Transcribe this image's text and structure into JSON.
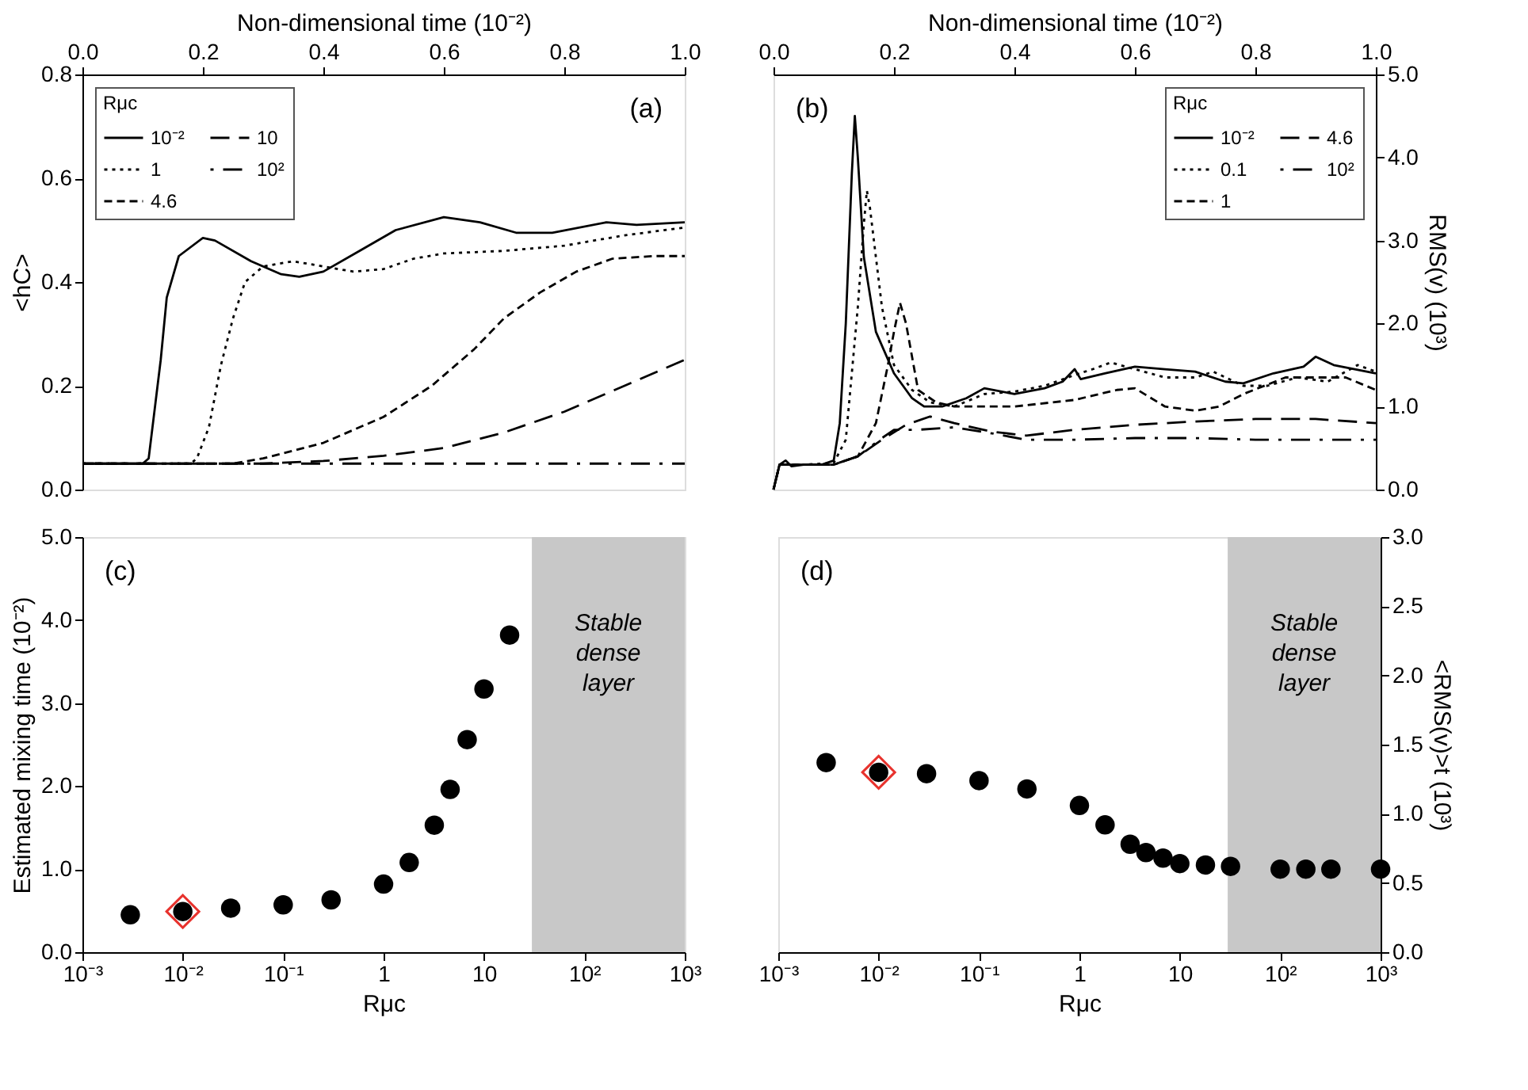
{
  "chart_data": [
    {
      "type": "line",
      "xlabel": "Non-dimensional time (10⁻²)",
      "ylabel": "<hC>",
      "legend_title": "Rμc",
      "legend": "top left",
      "xlim": [
        0,
        1
      ],
      "xticks": [
        {
          "value": 0,
          "label": "0.0"
        },
        {
          "value": 0.2,
          "label": "0.2"
        },
        {
          "value": 0.4,
          "label": "0.4"
        },
        {
          "value": 0.6,
          "label": "0.6"
        },
        {
          "value": 0.8,
          "label": "0.8"
        },
        {
          "value": 1,
          "label": "1.0"
        }
      ],
      "ylim": [
        0,
        0.8
      ],
      "yticks": [
        {
          "value": 0,
          "label": "0.0"
        },
        0.2,
        0.4,
        0.6,
        0.8
      ],
      "annotations": [
        "(a)"
      ],
      "series": [
        {
          "name": "10⁻²",
          "color": "#000000",
          "line_style": "solid",
          "x": [
            0,
            0.1,
            0.11,
            0.13,
            0.14,
            0.16,
            0.2,
            0.22,
            0.28,
            0.33,
            0.36,
            0.4,
            0.46,
            0.52,
            0.6,
            0.66,
            0.72,
            0.78,
            0.87,
            0.92,
            1.0
          ],
          "values": [
            0.05,
            0.05,
            0.06,
            0.25,
            0.37,
            0.45,
            0.485,
            0.48,
            0.44,
            0.415,
            0.41,
            0.42,
            0.46,
            0.5,
            0.525,
            0.515,
            0.495,
            0.495,
            0.515,
            0.51,
            0.515
          ]
        },
        {
          "name": "1",
          "color": "#000000",
          "line_style": "dotted",
          "x": [
            0,
            0.18,
            0.19,
            0.21,
            0.23,
            0.25,
            0.27,
            0.3,
            0.35,
            0.4,
            0.45,
            0.5,
            0.55,
            0.6,
            0.7,
            0.8,
            0.9,
            1.0
          ],
          "values": [
            0.05,
            0.05,
            0.06,
            0.12,
            0.24,
            0.33,
            0.4,
            0.43,
            0.44,
            0.43,
            0.42,
            0.425,
            0.445,
            0.455,
            0.46,
            0.47,
            0.49,
            0.505
          ]
        },
        {
          "name": "4.6",
          "color": "#000000",
          "line_style": "dashed",
          "x": [
            0,
            0.25,
            0.3,
            0.4,
            0.5,
            0.58,
            0.65,
            0.7,
            0.76,
            0.82,
            0.88,
            0.95,
            1.0
          ],
          "values": [
            0.05,
            0.05,
            0.06,
            0.09,
            0.14,
            0.2,
            0.27,
            0.33,
            0.38,
            0.42,
            0.445,
            0.45,
            0.45
          ]
        },
        {
          "name": "10",
          "color": "#000000",
          "line_style": "longdashed",
          "x": [
            0,
            0.3,
            0.4,
            0.5,
            0.6,
            0.7,
            0.8,
            0.9,
            1.0
          ],
          "values": [
            0.05,
            0.05,
            0.055,
            0.065,
            0.08,
            0.11,
            0.15,
            0.2,
            0.25
          ]
        },
        {
          "name": "10²",
          "color": "#000000",
          "line_style": "dashdot",
          "x": [
            0,
            1.0
          ],
          "values": [
            0.05,
            0.05
          ]
        }
      ]
    },
    {
      "type": "line",
      "xlabel": "Non-dimensional time (10⁻²)",
      "y2label": "RMS(v) (10³)",
      "legend_title": "Rμc",
      "legend": "top right",
      "xlim": [
        0,
        1
      ],
      "xticks": [
        {
          "value": 0,
          "label": "0.0"
        },
        {
          "value": 0.2,
          "label": "0.2"
        },
        {
          "value": 0.4,
          "label": "0.4"
        },
        {
          "value": 0.6,
          "label": "0.6"
        },
        {
          "value": 0.8,
          "label": "0.8"
        },
        {
          "value": 1,
          "label": "1.0"
        }
      ],
      "y2lim": [
        0,
        5
      ],
      "y2ticks": [
        {
          "value": 0,
          "label": "0.0"
        },
        {
          "value": 1,
          "label": "1.0"
        },
        {
          "value": 2,
          "label": "2.0"
        },
        {
          "value": 3,
          "label": "3.0"
        },
        {
          "value": 4,
          "label": "4.0"
        },
        {
          "value": 5,
          "label": "5.0"
        }
      ],
      "annotations": [
        "(b)"
      ],
      "series": [
        {
          "name": "10⁻²",
          "color": "#000000",
          "line_style": "solid",
          "axis": "y2",
          "x": [
            0,
            0.01,
            0.02,
            0.03,
            0.05,
            0.08,
            0.1,
            0.11,
            0.12,
            0.13,
            0.135,
            0.14,
            0.15,
            0.17,
            0.2,
            0.23,
            0.25,
            0.28,
            0.32,
            0.35,
            0.4,
            0.45,
            0.48,
            0.5,
            0.51,
            0.55,
            0.6,
            0.65,
            0.7,
            0.75,
            0.78,
            0.83,
            0.88,
            0.9,
            0.93,
            1.0
          ],
          "values": [
            0.0,
            0.3,
            0.35,
            0.28,
            0.3,
            0.3,
            0.35,
            0.8,
            2.0,
            3.8,
            4.5,
            4.0,
            2.8,
            1.9,
            1.4,
            1.1,
            1.0,
            1.0,
            1.1,
            1.22,
            1.15,
            1.22,
            1.3,
            1.45,
            1.33,
            1.4,
            1.48,
            1.45,
            1.42,
            1.3,
            1.28,
            1.4,
            1.48,
            1.6,
            1.5,
            1.4
          ]
        },
        {
          "name": "0.1",
          "color": "#000000",
          "line_style": "dotted",
          "axis": "y2",
          "x": [
            0,
            0.01,
            0.05,
            0.1,
            0.12,
            0.14,
            0.15,
            0.155,
            0.16,
            0.18,
            0.2,
            0.23,
            0.26,
            0.3,
            0.35,
            0.4,
            0.45,
            0.5,
            0.53,
            0.56,
            0.6,
            0.65,
            0.7,
            0.73,
            0.78,
            0.82,
            0.87,
            0.92,
            0.97,
            1.0
          ],
          "values": [
            0.0,
            0.3,
            0.3,
            0.32,
            0.6,
            2.2,
            3.2,
            3.6,
            3.4,
            2.2,
            1.5,
            1.2,
            1.05,
            1.0,
            1.15,
            1.18,
            1.25,
            1.38,
            1.45,
            1.53,
            1.45,
            1.35,
            1.35,
            1.42,
            1.25,
            1.25,
            1.35,
            1.3,
            1.5,
            1.42
          ]
        },
        {
          "name": "1",
          "color": "#000000",
          "line_style": "dashed",
          "axis": "y2",
          "x": [
            0,
            0.01,
            0.1,
            0.14,
            0.17,
            0.19,
            0.2,
            0.21,
            0.22,
            0.24,
            0.27,
            0.3,
            0.4,
            0.5,
            0.57,
            0.6,
            0.65,
            0.7,
            0.74,
            0.78,
            0.85,
            0.9,
            0.95,
            1.0
          ],
          "values": [
            0.0,
            0.3,
            0.3,
            0.4,
            0.8,
            1.5,
            1.9,
            2.25,
            2.0,
            1.2,
            1.05,
            1.0,
            1.0,
            1.08,
            1.2,
            1.22,
            1.0,
            0.95,
            1.0,
            1.15,
            1.35,
            1.35,
            1.35,
            1.2
          ]
        },
        {
          "name": "4.6",
          "color": "#000000",
          "line_style": "longdashed",
          "axis": "y2",
          "x": [
            0,
            0.01,
            0.1,
            0.14,
            0.18,
            0.22,
            0.26,
            0.3,
            0.36,
            0.42,
            0.5,
            0.6,
            0.7,
            0.8,
            0.9,
            1.0
          ],
          "values": [
            0.0,
            0.3,
            0.3,
            0.4,
            0.6,
            0.78,
            0.88,
            0.8,
            0.7,
            0.65,
            0.72,
            0.78,
            0.82,
            0.85,
            0.85,
            0.8
          ]
        },
        {
          "name": "10²",
          "color": "#000000",
          "line_style": "dashdot",
          "axis": "y2",
          "x": [
            0,
            0.01,
            0.1,
            0.14,
            0.18,
            0.2,
            0.24,
            0.3,
            0.36,
            0.42,
            0.5,
            0.6,
            0.7,
            0.8,
            0.9,
            1.0
          ],
          "values": [
            0.0,
            0.3,
            0.3,
            0.4,
            0.62,
            0.72,
            0.72,
            0.75,
            0.68,
            0.6,
            0.6,
            0.62,
            0.62,
            0.6,
            0.6,
            0.6
          ]
        }
      ]
    },
    {
      "type": "scatter",
      "xlabel": "Rμc",
      "ylabel": "Estimated mixing time (10⁻²)",
      "log": "x",
      "marker": "circle",
      "xlim": [
        0.001,
        1000
      ],
      "xticks": [
        {
          "value": 0.001,
          "label": "10⁻³"
        },
        {
          "value": 0.01,
          "label": "10⁻²"
        },
        {
          "value": 0.1,
          "label": "10⁻¹"
        },
        1,
        10,
        {
          "value": 100,
          "label": "10²"
        },
        {
          "value": 1000,
          "label": "10³"
        }
      ],
      "ylim": [
        0,
        5
      ],
      "yticks": [
        {
          "value": 0,
          "label": "0.0"
        },
        {
          "value": 1,
          "label": "1.0"
        },
        {
          "value": 2,
          "label": "2.0"
        },
        {
          "value": 3,
          "label": "3.0"
        },
        {
          "value": 4,
          "label": "4.0"
        },
        {
          "value": 5,
          "label": "5.0"
        }
      ],
      "annotations": [
        "(c)"
      ],
      "bands": [
        {
          "axis": "x",
          "from": 30,
          "to": 1000,
          "label": "Stable dense layer",
          "color": "#c8c8c8"
        }
      ],
      "series": [
        {
          "color": "#000000",
          "x": [
            0.003,
            0.01,
            0.03,
            0.1,
            0.3,
            1,
            1.8,
            3.2,
            4.6,
            6.8,
            10,
            18
          ],
          "values": [
            0.45,
            0.49,
            0.53,
            0.57,
            0.63,
            0.82,
            1.08,
            1.53,
            1.96,
            2.56,
            3.17,
            3.82
          ]
        },
        {
          "color": "#e8322d",
          "marker": "diamond",
          "x": [
            0.01
          ],
          "values": [
            0.49
          ]
        }
      ]
    },
    {
      "type": "scatter",
      "xlabel": "Rμc",
      "y2label": "<RMS(v)>t (10³)",
      "log": "x",
      "marker": "circle",
      "xlim": [
        0.001,
        1000
      ],
      "xticks": [
        {
          "value": 0.001,
          "label": "10⁻³"
        },
        {
          "value": 0.01,
          "label": "10⁻²"
        },
        {
          "value": 0.1,
          "label": "10⁻¹"
        },
        1,
        10,
        {
          "value": 100,
          "label": "10²"
        },
        {
          "value": 1000,
          "label": "10³"
        }
      ],
      "y2lim": [
        0,
        3
      ],
      "y2ticks": [
        {
          "value": 0,
          "label": "0.0"
        },
        0.5,
        {
          "value": 1,
          "label": "1.0"
        },
        1.5,
        {
          "value": 2,
          "label": "2.0"
        },
        2.5,
        {
          "value": 3,
          "label": "3.0"
        }
      ],
      "annotations": [
        "(d)"
      ],
      "bands": [
        {
          "axis": "x",
          "from": 30,
          "to": 1000,
          "label": "Stable dense layer",
          "color": "#c8c8c8"
        }
      ],
      "series": [
        {
          "color": "#000000",
          "axis": "y2",
          "x": [
            0.003,
            0.01,
            0.03,
            0.1,
            0.3,
            1,
            1.8,
            3.2,
            4.6,
            6.8,
            10,
            18,
            32,
            100,
            180,
            320,
            1000
          ],
          "values": [
            1.37,
            1.3,
            1.29,
            1.24,
            1.18,
            1.06,
            0.92,
            0.78,
            0.72,
            0.68,
            0.64,
            0.63,
            0.62,
            0.6,
            0.6,
            0.6,
            0.6
          ]
        },
        {
          "color": "#e8322d",
          "marker": "diamond",
          "axis": "y2",
          "x": [
            0.01
          ],
          "values": [
            1.3
          ]
        }
      ]
    }
  ]
}
